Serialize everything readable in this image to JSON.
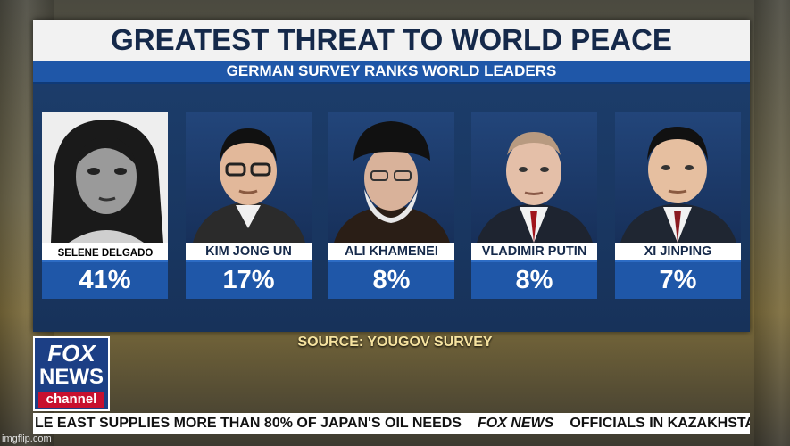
{
  "title": "GREATEST THREAT TO WORLD PEACE",
  "subtitle": "GERMAN SURVEY RANKS WORLD LEADERS",
  "leaders": [
    {
      "name": "SELENE DELGADO",
      "percent": "41%"
    },
    {
      "name": "KIM JONG UN",
      "percent": "17%"
    },
    {
      "name": "ALI KHAMENEI",
      "percent": "8%"
    },
    {
      "name": "VLADIMIR PUTIN",
      "percent": "8%"
    },
    {
      "name": "XI JINPING",
      "percent": "7%"
    }
  ],
  "source": "SOURCE: YOUGOV SURVEY",
  "logo": {
    "fox": "FOX",
    "news": "NEWS",
    "channel": "channel"
  },
  "ticker": {
    "left_text": "LE EAST SUPPLIES MORE THAN 80% OF JAPAN'S OIL NEEDS",
    "logo_text": "FOX NEWS",
    "right_text": "OFFICIALS IN KAZAKHSTAN SA"
  },
  "watermark": "imgflip.com",
  "colors": {
    "panel": "#17325a",
    "accent_blue": "#1f57a8",
    "title_text": "#15294a",
    "source_text": "#f6e3a0",
    "channel_red": "#c8102e"
  }
}
